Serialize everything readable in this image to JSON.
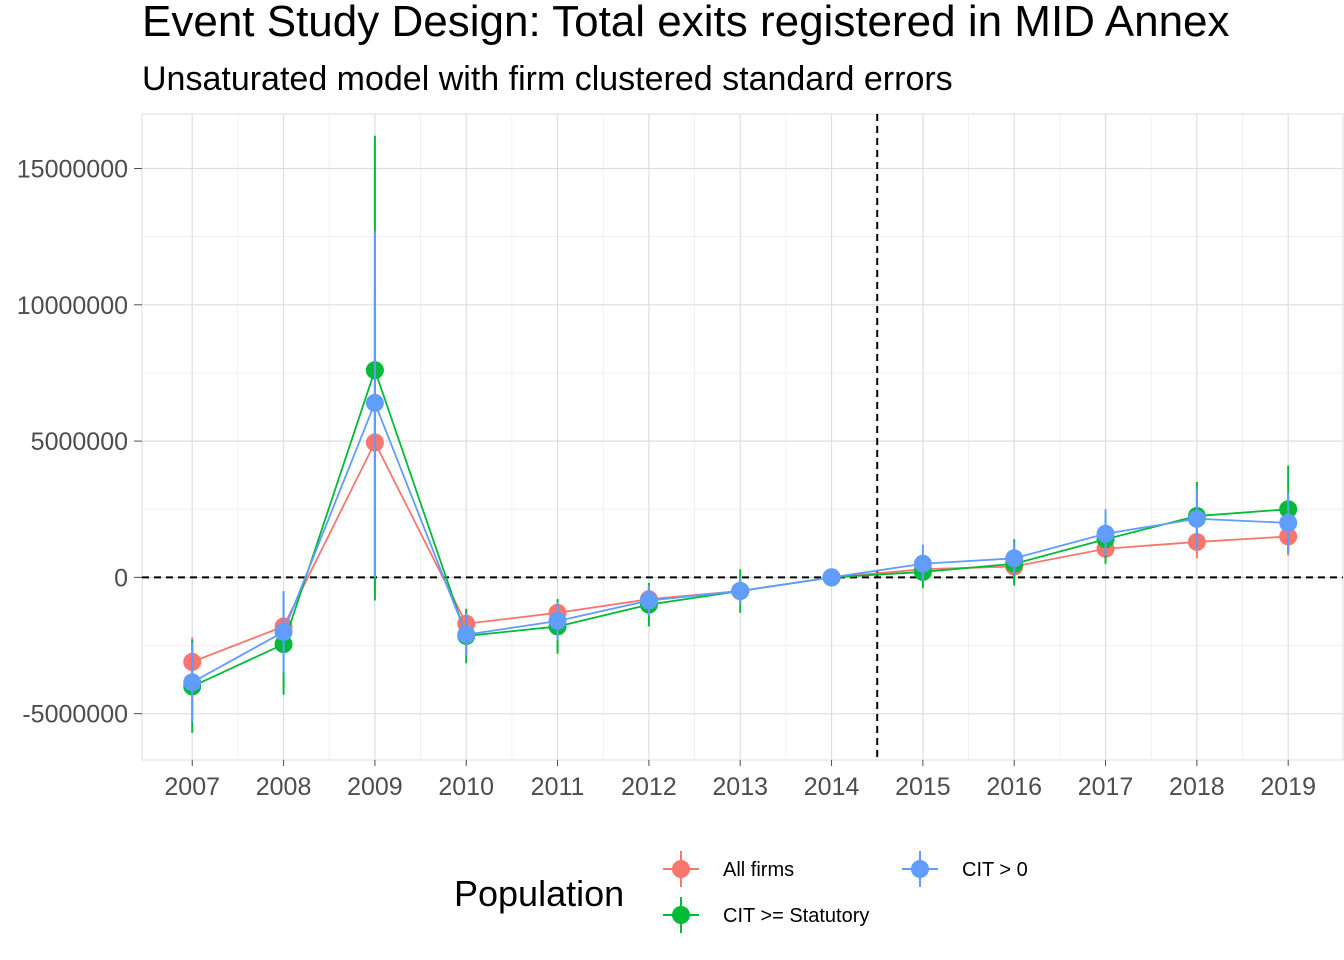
{
  "chart_data": {
    "type": "line",
    "title": "Event Study Design: Total exits registered in MID Annex",
    "subtitle": "Unsaturated model with firm clustered standard errors",
    "xlabel": "",
    "ylabel": "",
    "x": [
      2007,
      2008,
      2009,
      2010,
      2011,
      2012,
      2013,
      2014,
      2015,
      2016,
      2017,
      2018,
      2019
    ],
    "x_tick_labels": [
      "2007",
      "2008",
      "2009",
      "2010",
      "2011",
      "2012",
      "2013",
      "2014",
      "2015",
      "2016",
      "2017",
      "2018",
      "2019"
    ],
    "xlim": [
      2006.45,
      2019.6
    ],
    "y_ticks": [
      -5000000,
      0,
      5000000,
      10000000,
      15000000
    ],
    "y_tick_labels": [
      "-5000000",
      "0",
      "5000000",
      "10000000",
      "15000000"
    ],
    "ylim": [
      -6700000,
      17000000
    ],
    "grid": true,
    "reference_lines": {
      "horizontal_y": 0,
      "vertical_x": 2014.5,
      "style": "dashed"
    },
    "legend": {
      "title": "Population",
      "position": "bottom"
    },
    "series": [
      {
        "name": "All firms",
        "color": "#F8766D",
        "values": [
          -3100000,
          -1800000,
          4950000,
          -1700000,
          -1300000,
          -800000,
          -500000,
          0,
          300000,
          400000,
          1050000,
          1300000,
          1500000
        ],
        "ci_low": [
          -4000000,
          -2900000,
          -500000,
          -2200000,
          -1800000,
          -1200000,
          -900000,
          0,
          -100000,
          -200000,
          600000,
          700000,
          800000
        ],
        "ci_high": [
          -2200000,
          -700000,
          10400000,
          -1200000,
          -800000,
          -400000,
          -100000,
          0,
          700000,
          1000000,
          1500000,
          1900000,
          2200000
        ]
      },
      {
        "name": "CIT >= Statutory",
        "color": "#00BA38",
        "values": [
          -4000000,
          -2450000,
          7600000,
          -2150000,
          -1800000,
          -1000000,
          -500000,
          0,
          200000,
          500000,
          1400000,
          2250000,
          2500000
        ],
        "ci_low": [
          -5700000,
          -4300000,
          -850000,
          -3150000,
          -2800000,
          -1800000,
          -1300000,
          0,
          -400000,
          -300000,
          500000,
          1100000,
          900000
        ],
        "ci_high": [
          -2300000,
          -600000,
          16200000,
          -1150000,
          -800000,
          -200000,
          300000,
          0,
          800000,
          1400000,
          2300000,
          3500000,
          4100000
        ]
      },
      {
        "name": "CIT > 0",
        "color": "#619CFF",
        "values": [
          -3850000,
          -2000000,
          6400000,
          -2100000,
          -1600000,
          -850000,
          -500000,
          0,
          500000,
          700000,
          1600000,
          2150000,
          2000000
        ],
        "ci_low": [
          -5300000,
          -3500000,
          0,
          -2900000,
          -2300000,
          -1400000,
          -1000000,
          0,
          -100000,
          100000,
          800000,
          1000000,
          900000
        ],
        "ci_high": [
          -2400000,
          -500000,
          12700000,
          -1300000,
          -900000,
          -300000,
          0,
          0,
          1200000,
          1300000,
          2500000,
          3300000,
          3100000
        ]
      }
    ]
  }
}
